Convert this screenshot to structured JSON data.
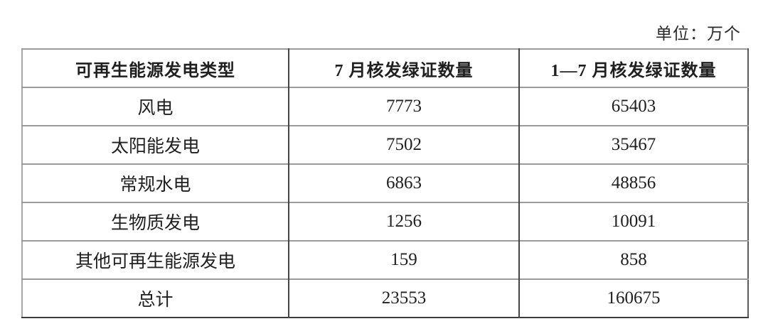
{
  "unit_label": "单位：万个",
  "table": {
    "headers": [
      "可再生能源发电类型",
      "7 月核发绿证数量",
      "1—7 月核发绿证数量"
    ],
    "rows": [
      [
        "风电",
        "7773",
        "65403"
      ],
      [
        "太阳能发电",
        "7502",
        "35467"
      ],
      [
        "常规水电",
        "6863",
        "48856"
      ],
      [
        "生物质发电",
        "1256",
        "10091"
      ],
      [
        "其他可再生能源发电",
        "159",
        "858"
      ],
      [
        "总计",
        "23553",
        "160675"
      ]
    ]
  }
}
